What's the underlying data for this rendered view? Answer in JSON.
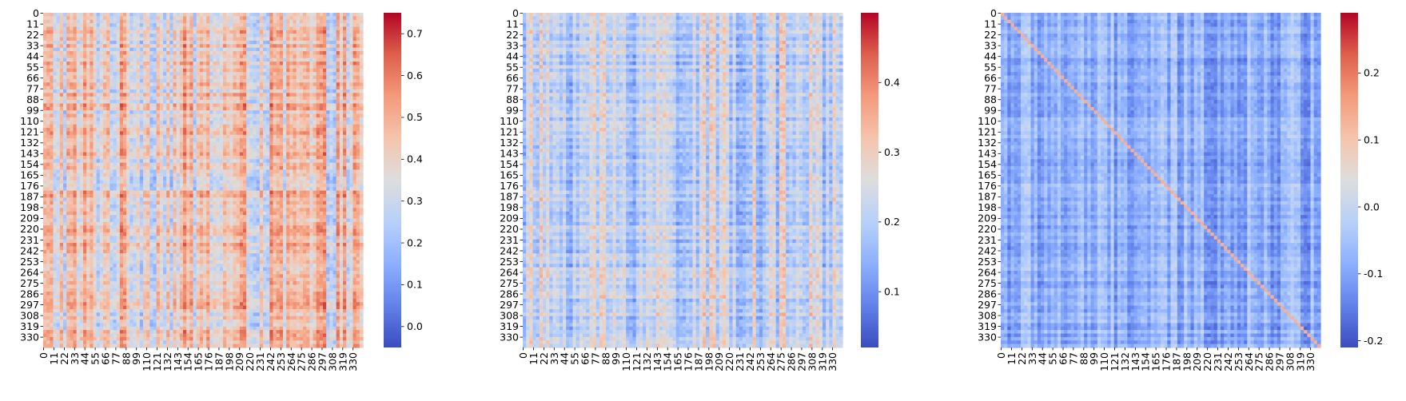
{
  "figure": {
    "panel_count": 3
  },
  "chart_data": [
    {
      "type": "heatmap",
      "title": "",
      "xlabel": "",
      "ylabel": "",
      "rows": 341,
      "cols": 341,
      "x_tick_labels": [
        "0",
        "11",
        "22",
        "33",
        "44",
        "55",
        "66",
        "77",
        "88",
        "99",
        "110",
        "121",
        "132",
        "143",
        "154",
        "165",
        "176",
        "187",
        "198",
        "209",
        "220",
        "231",
        "242",
        "253",
        "264",
        "275",
        "286",
        "297",
        "308",
        "319",
        "330"
      ],
      "y_tick_labels": [
        "0",
        "11",
        "22",
        "33",
        "44",
        "55",
        "66",
        "77",
        "88",
        "99",
        "110",
        "121",
        "132",
        "143",
        "154",
        "165",
        "176",
        "187",
        "198",
        "209",
        "220",
        "231",
        "242",
        "253",
        "264",
        "275",
        "286",
        "297",
        "308",
        "319",
        "330"
      ],
      "colormap": "coolwarm",
      "vmin": -0.05,
      "vmax": 0.75,
      "colorbar_ticks": [
        0.0,
        0.1,
        0.2,
        0.3,
        0.4,
        0.5,
        0.6,
        0.7
      ],
      "colorbar_tick_labels": [
        "0.0",
        "0.1",
        "0.2",
        "0.3",
        "0.4",
        "0.5",
        "0.6",
        "0.7"
      ],
      "typical_value_range": [
        0.2,
        0.55
      ],
      "dominant_value": 0.4
    },
    {
      "type": "heatmap",
      "title": "",
      "xlabel": "",
      "ylabel": "",
      "rows": 341,
      "cols": 341,
      "x_tick_labels": [
        "0",
        "11",
        "22",
        "33",
        "44",
        "55",
        "66",
        "77",
        "88",
        "99",
        "110",
        "121",
        "132",
        "143",
        "154",
        "165",
        "176",
        "187",
        "198",
        "209",
        "220",
        "231",
        "242",
        "253",
        "264",
        "275",
        "286",
        "297",
        "308",
        "319",
        "330"
      ],
      "y_tick_labels": [
        "0",
        "11",
        "22",
        "33",
        "44",
        "55",
        "66",
        "77",
        "88",
        "99",
        "110",
        "121",
        "132",
        "143",
        "154",
        "165",
        "176",
        "187",
        "198",
        "209",
        "220",
        "231",
        "242",
        "253",
        "264",
        "275",
        "286",
        "297",
        "308",
        "319",
        "330"
      ],
      "colormap": "coolwarm",
      "vmin": 0.02,
      "vmax": 0.5,
      "colorbar_ticks": [
        0.1,
        0.2,
        0.3,
        0.4
      ],
      "colorbar_tick_labels": [
        "0.1",
        "0.2",
        "0.3",
        "0.4"
      ],
      "typical_value_range": [
        0.12,
        0.3
      ],
      "dominant_value": 0.22
    },
    {
      "type": "heatmap",
      "title": "",
      "xlabel": "",
      "ylabel": "",
      "rows": 341,
      "cols": 341,
      "x_tick_labels": [
        "0",
        "11",
        "22",
        "33",
        "44",
        "55",
        "66",
        "77",
        "88",
        "99",
        "110",
        "121",
        "132",
        "143",
        "154",
        "165",
        "176",
        "187",
        "198",
        "209",
        "220",
        "231",
        "242",
        "253",
        "264",
        "275",
        "286",
        "297",
        "308",
        "319",
        "330"
      ],
      "y_tick_labels": [
        "0",
        "11",
        "22",
        "33",
        "44",
        "55",
        "66",
        "77",
        "88",
        "99",
        "110",
        "121",
        "132",
        "143",
        "154",
        "165",
        "176",
        "187",
        "198",
        "209",
        "220",
        "231",
        "242",
        "253",
        "264",
        "275",
        "286",
        "297",
        "308",
        "319",
        "330"
      ],
      "colormap": "coolwarm",
      "vmin": -0.21,
      "vmax": 0.29,
      "colorbar_ticks": [
        -0.2,
        -0.1,
        0.0,
        0.1,
        0.2
      ],
      "colorbar_tick_labels": [
        "-0.2",
        "-0.1",
        "0.0",
        "0.1",
        "0.2"
      ],
      "typical_value_range": [
        -0.15,
        -0.02
      ],
      "dominant_value": -0.08
    }
  ]
}
